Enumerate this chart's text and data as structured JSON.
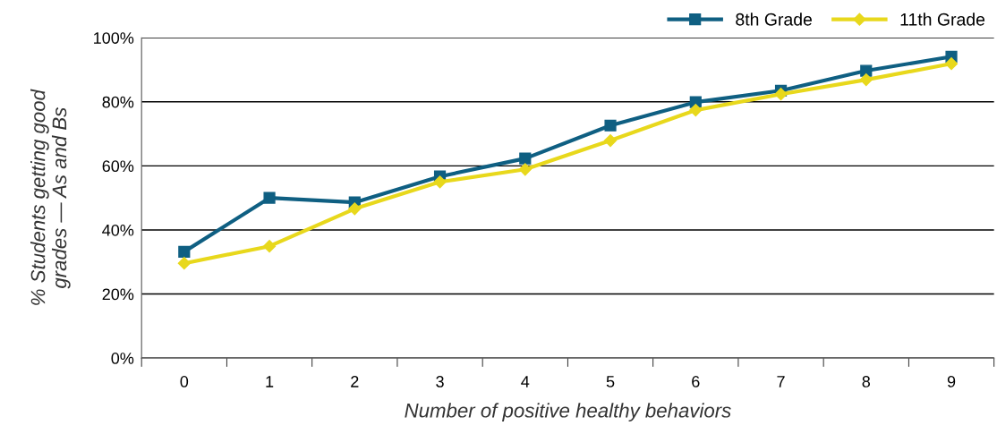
{
  "chart_data": {
    "type": "line",
    "xlabel": "Number of positive healthy behaviors",
    "ylabel": "% Students getting good\ngrades — As and Bs",
    "categories": [
      "0",
      "1",
      "2",
      "3",
      "4",
      "5",
      "6",
      "7",
      "8",
      "9"
    ],
    "series": [
      {
        "name": "8th Grade",
        "color": "#0f5f82",
        "marker": "square",
        "values": [
          33.2,
          50,
          48.6,
          56.7,
          62.3,
          72.6,
          79.9,
          83.5,
          89.7,
          94.1
        ]
      },
      {
        "name": "11th Grade",
        "color": "#e8d81c",
        "marker": "diamond",
        "values": [
          29.6,
          34.9,
          46.6,
          55,
          58.9,
          67.9,
          77.4,
          82.4,
          86.9,
          91.9
        ]
      }
    ],
    "ylim": [
      0,
      100
    ],
    "yticks": [
      {
        "value": 0,
        "label": "0%"
      },
      {
        "value": 20,
        "label": "20%"
      },
      {
        "value": 40,
        "label": "40%"
      },
      {
        "value": 60,
        "label": "60%"
      },
      {
        "value": 80,
        "label": "80%"
      },
      {
        "value": 100,
        "label": "100%"
      }
    ],
    "grid": "y",
    "legend": "top right",
    "line_style": "solid"
  }
}
